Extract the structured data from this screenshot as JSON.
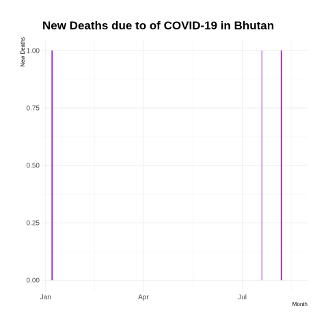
{
  "chart_data": {
    "type": "bar",
    "title": "New Deaths due to of COVID-19 in Bhutan",
    "xlabel": "Month",
    "ylabel": "New Deaths",
    "x_ticks": [
      {
        "label": "Jan",
        "date": "2021-01-01"
      },
      {
        "label": "Apr",
        "date": "2021-04-01"
      },
      {
        "label": "Jul",
        "date": "2021-07-01"
      }
    ],
    "y_ticks": [
      "0.00",
      "0.25",
      "0.50",
      "0.75",
      "1.00"
    ],
    "xlim": [
      "2020-12-29",
      "2021-08-30"
    ],
    "ylim": [
      -0.05,
      1.05
    ],
    "grid": true,
    "bar_color": "#9b30d9",
    "series": [
      {
        "points": [
          {
            "date": "2021-01-07",
            "value": 1
          },
          {
            "date": "2021-07-19",
            "value": 1
          },
          {
            "date": "2021-08-06",
            "value": 1
          }
        ]
      }
    ]
  }
}
